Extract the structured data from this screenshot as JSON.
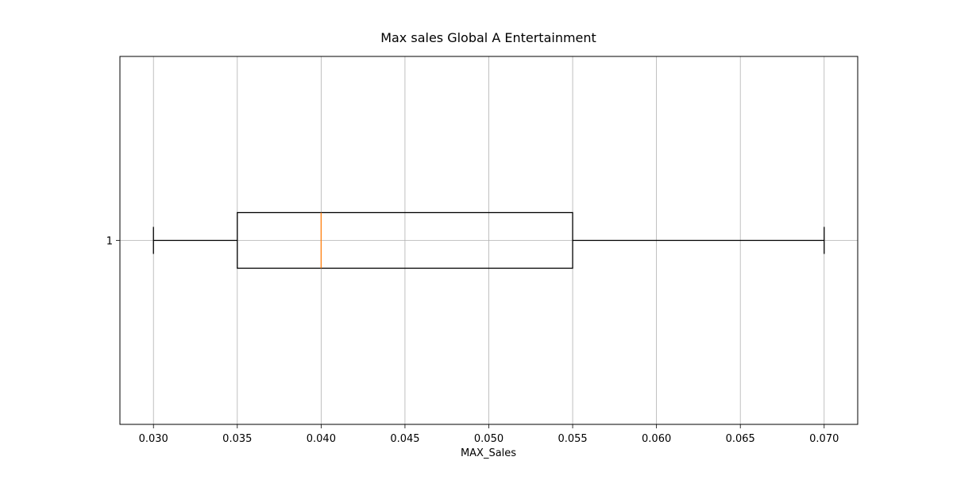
{
  "chart_data": {
    "type": "boxplot",
    "orientation": "horizontal",
    "title": "Max sales Global A Entertainment",
    "xlabel": "MAX_Sales",
    "ylabel": "",
    "xlim": [
      0.028,
      0.072
    ],
    "x_ticks": [
      "0.030",
      "0.035",
      "0.040",
      "0.045",
      "0.050",
      "0.055",
      "0.060",
      "0.065",
      "0.070"
    ],
    "y_categories": [
      "1"
    ],
    "grid": true,
    "boxes": [
      {
        "category": "1",
        "whisker_low": 0.03,
        "q1": 0.035,
        "median": 0.04,
        "q3": 0.055,
        "whisker_high": 0.07
      }
    ],
    "colors": {
      "box": "#000000",
      "median": "#ff7f0e",
      "grid": "#b0b0b0",
      "axes": "#000000"
    }
  }
}
